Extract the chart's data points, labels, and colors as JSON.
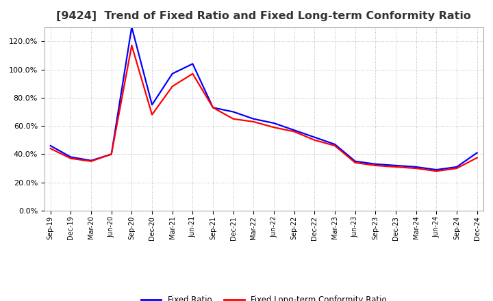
{
  "title": "[9424]  Trend of Fixed Ratio and Fixed Long-term Conformity Ratio",
  "x_labels": [
    "Sep-19",
    "Dec-19",
    "Mar-20",
    "Jun-20",
    "Sep-20",
    "Dec-20",
    "Mar-21",
    "Jun-21",
    "Sep-21",
    "Dec-21",
    "Mar-22",
    "Jun-22",
    "Sep-22",
    "Dec-22",
    "Mar-23",
    "Jun-23",
    "Sep-23",
    "Dec-23",
    "Mar-24",
    "Jun-24",
    "Sep-24",
    "Dec-24"
  ],
  "fixed_ratio": [
    0.46,
    0.38,
    0.355,
    0.4,
    1.3,
    0.75,
    0.97,
    1.04,
    0.73,
    0.7,
    0.65,
    0.62,
    0.57,
    0.52,
    0.47,
    0.35,
    0.33,
    0.32,
    0.31,
    0.29,
    0.31,
    0.41
  ],
  "fixed_lt_ratio": [
    0.44,
    0.37,
    0.35,
    0.4,
    1.17,
    0.68,
    0.88,
    0.97,
    0.73,
    0.65,
    0.63,
    0.59,
    0.56,
    0.5,
    0.46,
    0.34,
    0.32,
    0.31,
    0.3,
    0.28,
    0.3,
    0.375
  ],
  "fixed_ratio_color": "#0000FF",
  "fixed_lt_ratio_color": "#FF0000",
  "ylim": [
    0.0,
    1.3
  ],
  "yticks": [
    0.0,
    0.2,
    0.4,
    0.6,
    0.8,
    1.0,
    1.2
  ],
  "background_color": "#FFFFFF",
  "plot_background": "#FFFFFF",
  "grid_color": "#999999",
  "title_fontsize": 11.5,
  "legend_labels": [
    "Fixed Ratio",
    "Fixed Long-term Conformity Ratio"
  ],
  "line_width": 1.6
}
